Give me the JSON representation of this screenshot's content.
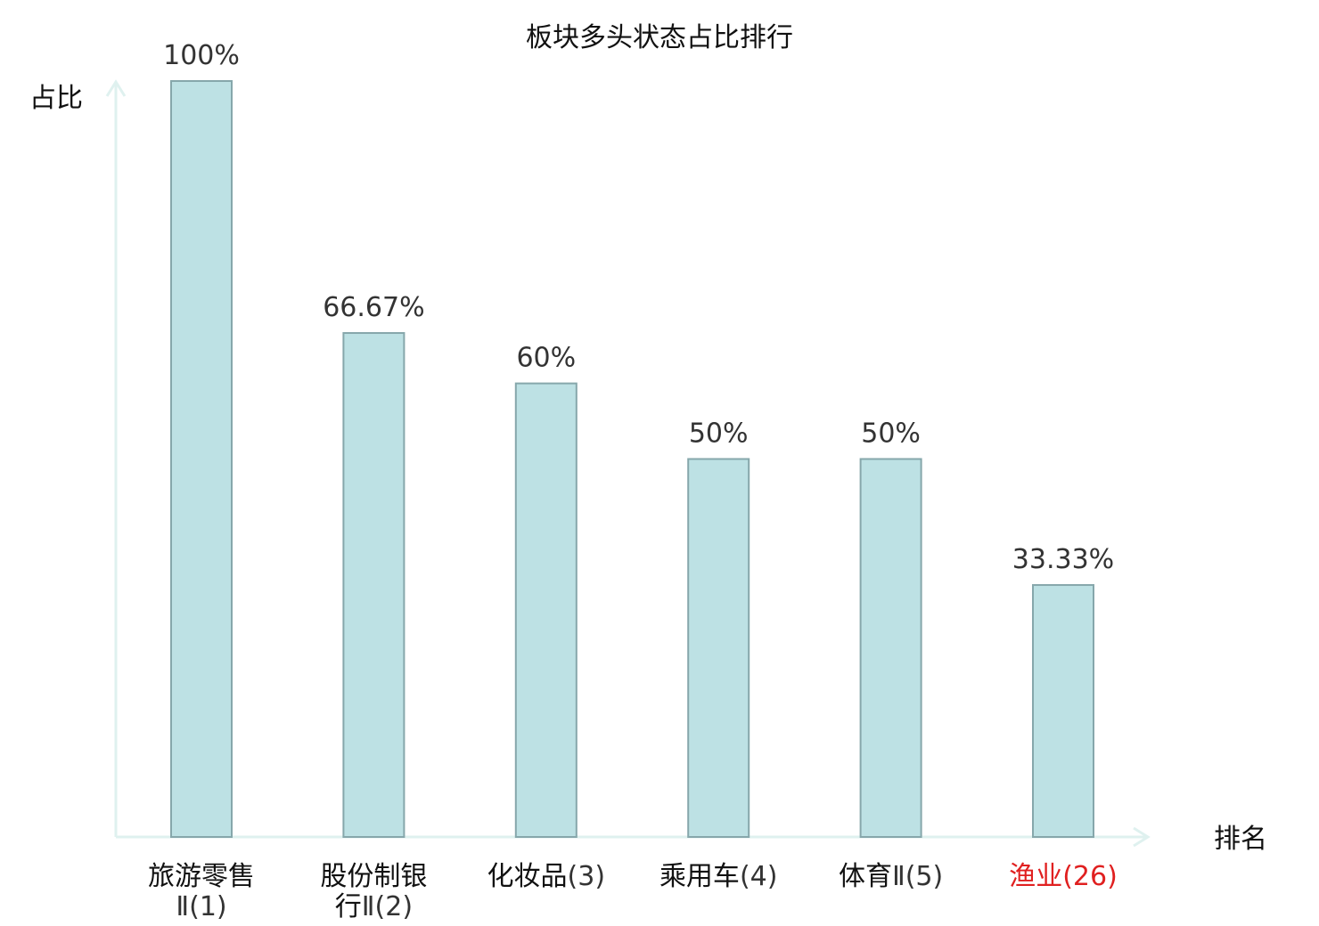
{
  "colors": {
    "bar_fill": "#bde1e4",
    "bar_stroke": "#86a7ab",
    "axis": "#dff1ef",
    "text": "#111111",
    "value_text": "#333333",
    "rank_text": "#333333",
    "highlight": "#e02020"
  },
  "chart_data": {
    "type": "bar",
    "title": "板块多头状态占比排行",
    "ylabel": "占比",
    "xlabel": "排名",
    "ylim": [
      0,
      100
    ],
    "grid": false,
    "categories": [
      {
        "lines": [
          "旅游零售",
          "Ⅱ(1)"
        ],
        "highlight": false
      },
      {
        "lines": [
          "股份制银",
          "行Ⅱ(2)"
        ],
        "highlight": false
      },
      {
        "lines": [
          "化妆品(3)"
        ],
        "highlight": false
      },
      {
        "lines": [
          "乘用车(4)"
        ],
        "highlight": false
      },
      {
        "lines": [
          "体育Ⅱ(5)"
        ],
        "highlight": false
      },
      {
        "lines": [
          "渔业(26)"
        ],
        "highlight": true
      }
    ],
    "values": [
      100,
      66.67,
      60,
      50,
      50,
      33.33
    ],
    "value_labels": [
      "100%",
      "66.67%",
      "60%",
      "50%",
      "50%",
      "33.33%"
    ]
  }
}
